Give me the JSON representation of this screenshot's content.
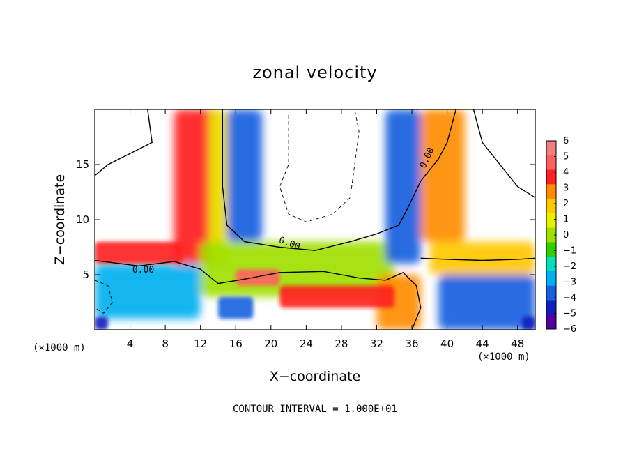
{
  "chart_data": {
    "type": "heatmap",
    "title": "zonal velocity",
    "xlabel": "X−coordinate",
    "ylabel": "Z−coordinate",
    "x_unit": "(×1000 m)",
    "y_unit": "(×1000 m)",
    "xlim": [
      0,
      50
    ],
    "ylim": [
      0,
      20
    ],
    "x_ticks": [
      4,
      8,
      12,
      16,
      20,
      24,
      28,
      32,
      36,
      40,
      44,
      48
    ],
    "y_ticks": [
      5,
      10,
      15
    ],
    "colorbar": {
      "ticks": [
        6,
        5,
        4,
        3,
        2,
        1,
        0,
        -1,
        -2,
        -3,
        -4,
        -5,
        -6
      ],
      "tick_labels": [
        "6",
        "5",
        "4",
        "3",
        "2",
        "1",
        "0",
        "−1",
        "−2",
        "−3",
        "−4",
        "−5",
        "−6"
      ],
      "colors": [
        "#f08080",
        "#ff6060",
        "#ff2020",
        "#ff8c00",
        "#ffc800",
        "#e8f000",
        "#a0e000",
        "#30d000",
        "#00e0c0",
        "#00b0f0",
        "#1860e0",
        "#1020c0",
        "#5000a0"
      ]
    },
    "contour_labels": [
      "0.00",
      "0.00",
      "0.00"
    ],
    "footer": "CONTOUR INTERVAL = 1.000E+01",
    "regions": [
      {
        "desc": "left vertical jet",
        "x": [
          9,
          15
        ],
        "z": [
          6,
          20
        ],
        "value": 4
      },
      {
        "desc": "left jet core",
        "x": [
          13,
          15
        ],
        "z": [
          6,
          20
        ],
        "value": 1
      },
      {
        "desc": "left jet negative flank",
        "x": [
          15,
          19
        ],
        "z": [
          8,
          20
        ],
        "value": -4
      },
      {
        "desc": "low-level easterly band",
        "x": [
          0,
          12
        ],
        "z": [
          1,
          6
        ],
        "value": -3
      },
      {
        "desc": "central low layer",
        "x": [
          12,
          34
        ],
        "z": [
          3,
          8
        ],
        "value": 0
      },
      {
        "desc": "right vertical jet negative",
        "x": [
          33,
          37
        ],
        "z": [
          6,
          20
        ],
        "value": -4
      },
      {
        "desc": "right vertical jet positive",
        "x": [
          37,
          42
        ],
        "z": [
          8,
          20
        ],
        "value": 3
      },
      {
        "desc": "right low jet",
        "x": [
          38,
          50
        ],
        "z": [
          5,
          8
        ],
        "value": 2
      },
      {
        "desc": "right lower negative",
        "x": [
          39,
          50
        ],
        "z": [
          0,
          5
        ],
        "value": -4
      },
      {
        "desc": "central surface jet",
        "x": [
          32,
          37
        ],
        "z": [
          0,
          5
        ],
        "value": 3
      }
    ]
  }
}
